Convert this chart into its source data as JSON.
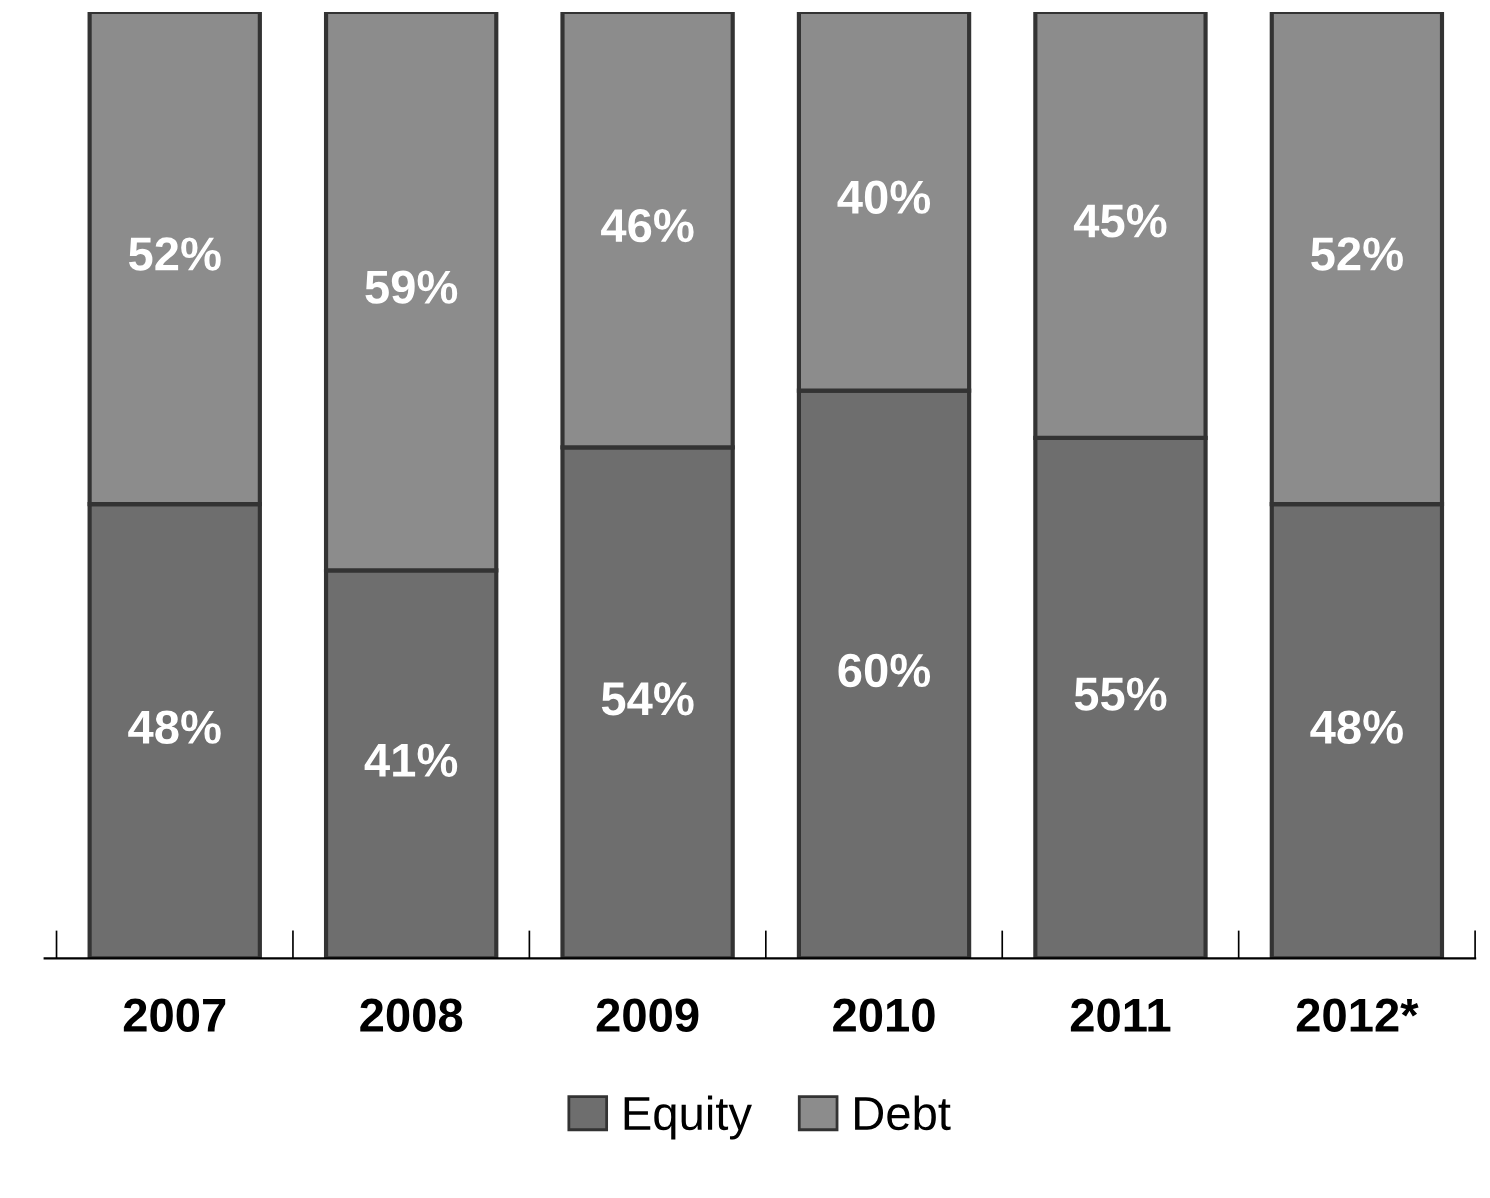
{
  "chart_data": {
    "type": "bar",
    "stacked": true,
    "categories": [
      "2007",
      "2008",
      "2009",
      "2010",
      "2011",
      "2012*"
    ],
    "series": [
      {
        "name": "Equity",
        "color": "#6e6e6e",
        "values": [
          48,
          41,
          54,
          60,
          55,
          48
        ],
        "value_labels": [
          "48%",
          "41%",
          "54%",
          "60%",
          "55%",
          "48%"
        ]
      },
      {
        "name": "Debt",
        "color": "#8c8c8c",
        "values": [
          52,
          59,
          46,
          40,
          45,
          52
        ],
        "value_labels": [
          "52%",
          "59%",
          "46%",
          "40%",
          "45%",
          "52%"
        ]
      }
    ],
    "legend": "bottom",
    "tick_labels": "x",
    "grid": false
  }
}
